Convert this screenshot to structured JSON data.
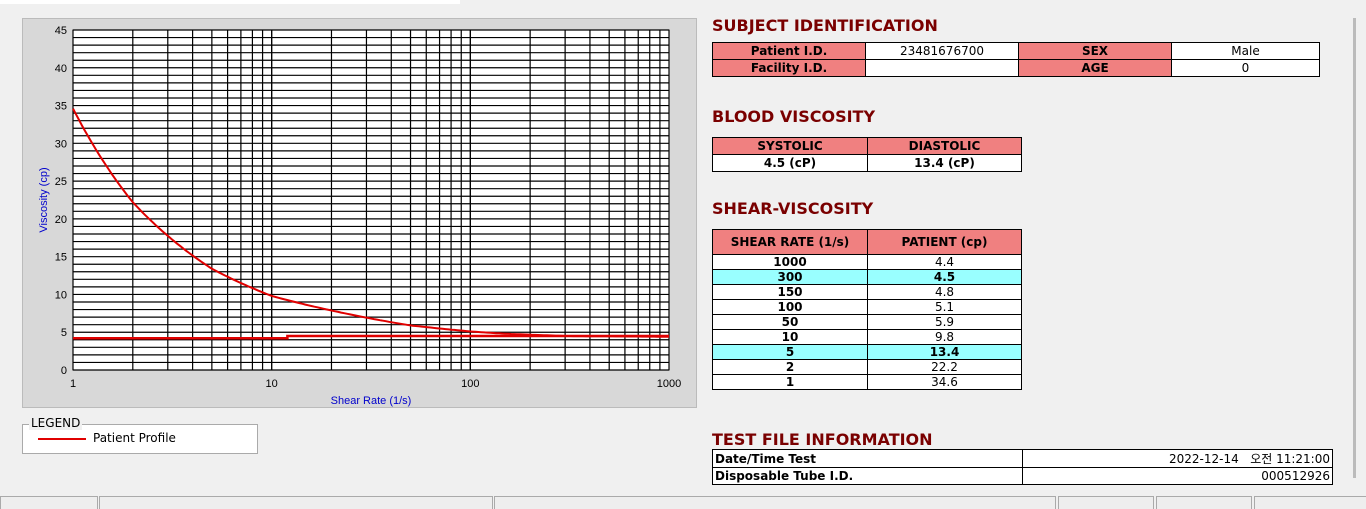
{
  "chart_data": {
    "type": "line",
    "xlabel": "Shear Rate (1/s)",
    "ylabel": "Viscosity (cp)",
    "xscale": "log",
    "xlim": [
      1,
      1000
    ],
    "ylim": [
      0,
      45
    ],
    "grid": true,
    "xticks": [
      "1",
      "10",
      "100",
      "1000"
    ],
    "yticks": [
      "0",
      "5",
      "10",
      "15",
      "20",
      "25",
      "30",
      "35",
      "40",
      "45"
    ],
    "series": [
      {
        "name": "Patient Profile",
        "color": "#e00000",
        "x": [
          1,
          2,
          5,
          10,
          50,
          100,
          150,
          300,
          1000
        ],
        "y": [
          34.6,
          22.2,
          13.4,
          9.8,
          5.9,
          5.1,
          4.8,
          4.5,
          4.4
        ]
      },
      {
        "color": "#e00000",
        "x": [
          1,
          12,
          12,
          1000
        ],
        "y": [
          4.2,
          4.2,
          4.5,
          4.5
        ]
      }
    ]
  },
  "legend": {
    "title": "LEGEND",
    "entry": "Patient Profile"
  },
  "subject": {
    "title": "SUBJECT IDENTIFICATION",
    "patient_id_label": "Patient I.D.",
    "patient_id": "23481676700",
    "sex_label": "SEX",
    "sex": "Male",
    "facility_label": "Facility I.D.",
    "facility": "",
    "age_label": "AGE",
    "age": "0"
  },
  "blood": {
    "title": "BLOOD VISCOSITY",
    "systolic_label": "SYSTOLIC",
    "diastolic_label": "DIASTOLIC",
    "systolic": "4.5 (cP)",
    "diastolic": "13.4 (cP)"
  },
  "shear": {
    "title": "SHEAR-VISCOSITY",
    "col1": "SHEAR RATE (1/s)",
    "col2": "PATIENT (cp)",
    "rows": [
      {
        "rate": "1000",
        "val": "4.4"
      },
      {
        "rate": "300",
        "val": "4.5",
        "hl": true
      },
      {
        "rate": "150",
        "val": "4.8"
      },
      {
        "rate": "100",
        "val": "5.1"
      },
      {
        "rate": "50",
        "val": "5.9"
      },
      {
        "rate": "10",
        "val": "9.8"
      },
      {
        "rate": "5",
        "val": "13.4",
        "hl": true
      },
      {
        "rate": "2",
        "val": "22.2"
      },
      {
        "rate": "1",
        "val": "34.6"
      }
    ]
  },
  "testfile": {
    "title": "TEST FILE INFORMATION",
    "date_label": "Date/Time Test",
    "date": "2022-12-14   오전 11:21:00",
    "tube_label": "Disposable Tube I.D.",
    "tube": "000512926"
  }
}
